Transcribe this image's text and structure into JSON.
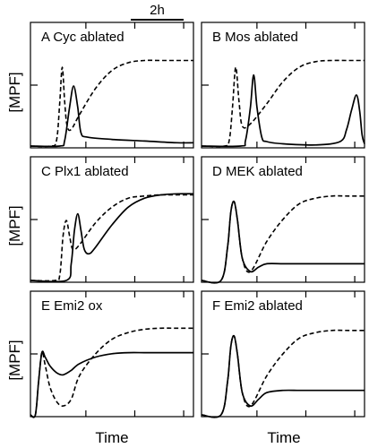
{
  "figure": {
    "scale_bar_label": "2h",
    "ylabel": "[MPF]",
    "xlabel": "Time"
  },
  "chart_data": [
    {
      "type": "line",
      "panel": "A",
      "title": "Cyc ablated",
      "xlabel": "Time",
      "ylabel": "[MPF]",
      "xlim": [
        0,
        1
      ],
      "ylim": [
        0,
        1
      ],
      "series": [
        {
          "style": "dashed",
          "x": [
            0,
            0.12,
            0.16,
            0.18,
            0.195,
            0.21,
            0.225,
            0.25,
            0.3,
            0.4,
            0.5,
            0.6,
            0.7,
            0.8,
            0.9,
            1
          ],
          "y": [
            0,
            0,
            0.05,
            0.4,
            0.71,
            0.4,
            0.18,
            0.15,
            0.28,
            0.52,
            0.68,
            0.75,
            0.77,
            0.77,
            0.77,
            0.77
          ]
        },
        {
          "style": "solid",
          "x": [
            0,
            0.18,
            0.21,
            0.24,
            0.265,
            0.29,
            0.31,
            0.35,
            0.5,
            0.7,
            0.9,
            1
          ],
          "y": [
            0,
            0,
            0.05,
            0.35,
            0.54,
            0.35,
            0.12,
            0.08,
            0.06,
            0.045,
            0.03,
            0.03
          ]
        }
      ]
    },
    {
      "type": "line",
      "panel": "B",
      "title": "Mos ablated",
      "xlabel": "Time",
      "ylabel": "[MPF]",
      "xlim": [
        0,
        1
      ],
      "ylim": [
        0,
        1
      ],
      "series": [
        {
          "style": "dashed",
          "x": [
            0,
            0.14,
            0.17,
            0.19,
            0.21,
            0.23,
            0.25,
            0.3,
            0.4,
            0.5,
            0.6,
            0.7,
            0.8,
            0.9,
            1
          ],
          "y": [
            0,
            0,
            0.05,
            0.35,
            0.71,
            0.4,
            0.18,
            0.2,
            0.38,
            0.58,
            0.71,
            0.76,
            0.77,
            0.77,
            0.77
          ]
        },
        {
          "style": "solid",
          "x": [
            0,
            0.24,
            0.27,
            0.3,
            0.32,
            0.34,
            0.37,
            0.4,
            0.5,
            0.7,
            0.85,
            0.89,
            0.92,
            0.95,
            0.97,
            0.985,
            1
          ],
          "y": [
            0,
            0,
            0.05,
            0.35,
            0.64,
            0.35,
            0.08,
            0.04,
            0.02,
            0.01,
            0.04,
            0.15,
            0.32,
            0.46,
            0.32,
            0.1,
            0.02
          ]
        }
      ]
    },
    {
      "type": "line",
      "panel": "C",
      "title": "Plx1 ablated",
      "xlabel": "Time",
      "ylabel": "[MPF]",
      "xlim": [
        0,
        1
      ],
      "ylim": [
        0,
        1
      ],
      "series": [
        {
          "style": "dashed",
          "x": [
            0,
            0.15,
            0.18,
            0.2,
            0.22,
            0.24,
            0.26,
            0.3,
            0.4,
            0.5,
            0.6,
            0.7,
            0.8,
            0.9,
            1
          ],
          "y": [
            0,
            0,
            0.05,
            0.4,
            0.54,
            0.4,
            0.28,
            0.32,
            0.52,
            0.66,
            0.74,
            0.76,
            0.77,
            0.77,
            0.77
          ]
        },
        {
          "style": "solid",
          "x": [
            0,
            0.22,
            0.25,
            0.27,
            0.29,
            0.31,
            0.33,
            0.36,
            0.4,
            0.5,
            0.6,
            0.7,
            0.8,
            0.9,
            1
          ],
          "y": [
            0,
            0,
            0.15,
            0.45,
            0.6,
            0.45,
            0.28,
            0.24,
            0.3,
            0.5,
            0.66,
            0.74,
            0.77,
            0.78,
            0.78
          ]
        }
      ]
    },
    {
      "type": "line",
      "panel": "D",
      "title": "MEK ablated",
      "xlabel": "Time",
      "ylabel": "[MPF]",
      "xlim": [
        0,
        1
      ],
      "ylim": [
        0,
        1
      ],
      "series": [
        {
          "style": "dashed",
          "x": [
            0,
            0.12,
            0.16,
            0.18,
            0.2,
            0.22,
            0.25,
            0.3,
            0.4,
            0.5,
            0.6,
            0.7,
            0.8,
            0.9,
            1
          ],
          "y": [
            0,
            0,
            0.3,
            0.62,
            0.71,
            0.55,
            0.2,
            0.08,
            0.35,
            0.55,
            0.69,
            0.74,
            0.76,
            0.76,
            0.76
          ]
        },
        {
          "style": "solid",
          "x": [
            0,
            0.12,
            0.16,
            0.18,
            0.2,
            0.22,
            0.25,
            0.3,
            0.35,
            0.4,
            0.5,
            0.6,
            0.7,
            0.8,
            0.9,
            1
          ],
          "y": [
            0,
            0,
            0.3,
            0.62,
            0.71,
            0.55,
            0.2,
            0.08,
            0.12,
            0.15,
            0.15,
            0.15,
            0.15,
            0.15,
            0.15,
            0.15
          ]
        }
      ]
    },
    {
      "type": "line",
      "panel": "E",
      "title": "Emi2 ox",
      "xlabel": "Time",
      "ylabel": "[MPF]",
      "xlim": [
        0,
        1
      ],
      "ylim": [
        0,
        1
      ],
      "series": [
        {
          "style": "dashed",
          "x": [
            0,
            0.03,
            0.05,
            0.07,
            0.09,
            0.12,
            0.16,
            0.2,
            0.25,
            0.3,
            0.4,
            0.5,
            0.6,
            0.7,
            0.8,
            0.9,
            1
          ],
          "y": [
            0,
            0,
            0.3,
            0.56,
            0.45,
            0.25,
            0.12,
            0.08,
            0.14,
            0.35,
            0.55,
            0.68,
            0.74,
            0.77,
            0.78,
            0.78,
            0.78
          ]
        },
        {
          "style": "solid",
          "x": [
            0,
            0.03,
            0.05,
            0.07,
            0.09,
            0.12,
            0.16,
            0.2,
            0.25,
            0.3,
            0.4,
            0.5,
            0.6,
            0.7,
            0.8,
            0.9,
            1
          ],
          "y": [
            0,
            0,
            0.3,
            0.56,
            0.52,
            0.44,
            0.38,
            0.36,
            0.4,
            0.46,
            0.52,
            0.55,
            0.56,
            0.56,
            0.56,
            0.56,
            0.56
          ]
        }
      ]
    },
    {
      "type": "line",
      "panel": "F",
      "title": "Emi2 ablated",
      "xlabel": "Time",
      "ylabel": "[MPF]",
      "xlim": [
        0,
        1
      ],
      "ylim": [
        0,
        1
      ],
      "series": [
        {
          "style": "dashed",
          "x": [
            0,
            0.12,
            0.16,
            0.18,
            0.2,
            0.22,
            0.25,
            0.3,
            0.4,
            0.5,
            0.6,
            0.7,
            0.8,
            0.9,
            1
          ],
          "y": [
            0,
            0,
            0.3,
            0.62,
            0.71,
            0.55,
            0.2,
            0.08,
            0.35,
            0.55,
            0.69,
            0.74,
            0.76,
            0.76,
            0.76
          ]
        },
        {
          "style": "solid",
          "x": [
            0,
            0.12,
            0.16,
            0.18,
            0.2,
            0.22,
            0.25,
            0.3,
            0.35,
            0.4,
            0.5,
            0.6,
            0.7,
            0.8,
            0.9,
            1
          ],
          "y": [
            0,
            0,
            0.3,
            0.62,
            0.71,
            0.55,
            0.2,
            0.08,
            0.14,
            0.2,
            0.22,
            0.22,
            0.22,
            0.22,
            0.22,
            0.22
          ]
        }
      ]
    }
  ]
}
